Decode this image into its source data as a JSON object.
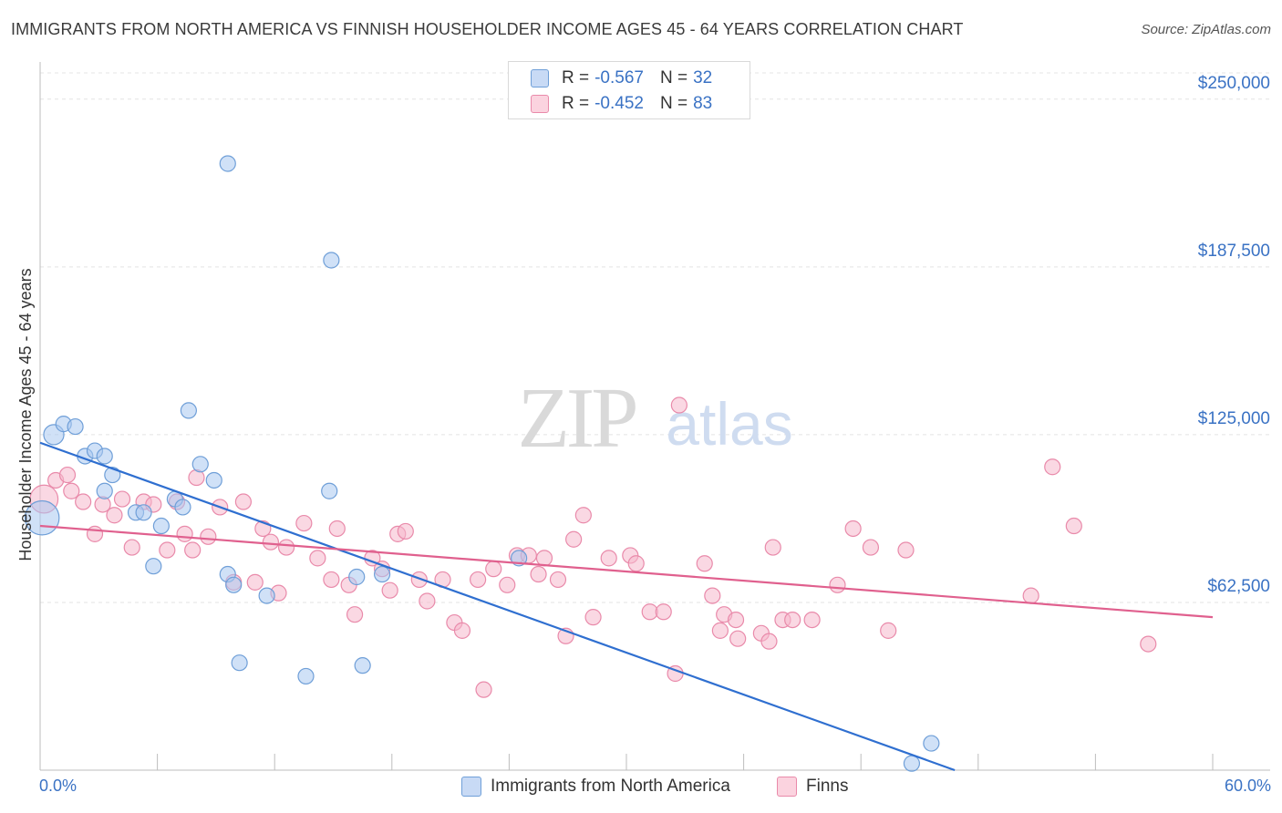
{
  "header": {
    "title": "IMMIGRANTS FROM NORTH AMERICA VS FINNISH HOUSEHOLDER INCOME AGES 45 - 64 YEARS CORRELATION CHART",
    "source": "Source: ZipAtlas.com"
  },
  "watermark": {
    "zip": "ZIP",
    "atlas": "atlas"
  },
  "legend": {
    "r_label": "R =",
    "n_label": "N =",
    "rows": [
      {
        "r": "-0.567",
        "n": "32",
        "color": "#aac8f0"
      },
      {
        "r": "-0.452",
        "n": "83",
        "color": "#f6b8cc"
      }
    ]
  },
  "colors": {
    "blue_fill": "#aac8f0",
    "blue_stroke": "#6f9fd8",
    "blue_line": "#2f6fd0",
    "pink_fill": "#f6b8cc",
    "pink_stroke": "#e98aaa",
    "pink_line": "#e0608e",
    "tick_label": "#3a72c4"
  },
  "chart_data": {
    "type": "scatter",
    "xlabel": "",
    "ylabel": "Householder Income Ages 45 - 64 years",
    "xlim": [
      0,
      60
    ],
    "ylim": [
      0,
      262500
    ],
    "x_tick_labels": [
      "0.0%",
      "60.0%"
    ],
    "y_ticks": [
      62500,
      125000,
      187500,
      250000
    ],
    "y_tick_labels": [
      "$62,500",
      "$125,000",
      "$187,500",
      "$250,000"
    ],
    "grid": true,
    "legend_position": "top-center",
    "series": [
      {
        "name": "Immigrants from North America",
        "trend": [
          [
            0,
            122000
          ],
          [
            46.8,
            0
          ]
        ],
        "points": [
          [
            0.1,
            94000,
            2.2
          ],
          [
            0.7,
            125000,
            1.3
          ],
          [
            1.2,
            129000,
            1.0
          ],
          [
            1.8,
            128000,
            1.0
          ],
          [
            2.3,
            117000,
            1.0
          ],
          [
            2.8,
            119000,
            1.0
          ],
          [
            3.3,
            117000,
            1.0
          ],
          [
            3.3,
            104000,
            1.0
          ],
          [
            3.7,
            110000,
            1.0
          ],
          [
            4.9,
            96000,
            1.0
          ],
          [
            5.3,
            96000,
            1.0
          ],
          [
            5.8,
            76000,
            1.0
          ],
          [
            6.2,
            91000,
            1.0
          ],
          [
            6.9,
            101000,
            1.0
          ],
          [
            7.3,
            98000,
            1.0
          ],
          [
            7.6,
            134000,
            1.0
          ],
          [
            8.2,
            114000,
            1.0
          ],
          [
            8.9,
            108000,
            1.0
          ],
          [
            9.6,
            226000,
            1.0
          ],
          [
            9.6,
            73000,
            1.0
          ],
          [
            9.9,
            69000,
            1.0
          ],
          [
            10.2,
            40000,
            1.0
          ],
          [
            11.6,
            65000,
            1.0
          ],
          [
            13.6,
            35000,
            1.0
          ],
          [
            14.8,
            104000,
            1.0
          ],
          [
            14.9,
            190000,
            1.0
          ],
          [
            16.2,
            72000,
            1.0
          ],
          [
            16.5,
            39000,
            1.0
          ],
          [
            17.5,
            73000,
            1.0
          ],
          [
            24.5,
            79000,
            1.0
          ],
          [
            44.6,
            2500,
            1.0
          ],
          [
            45.6,
            10000,
            1.0
          ]
        ]
      },
      {
        "name": "Finns",
        "trend": [
          [
            0,
            91000
          ],
          [
            60,
            57000
          ]
        ],
        "points": [
          [
            0.2,
            101000,
            1.8
          ],
          [
            0.8,
            108000,
            1.0
          ],
          [
            1.4,
            110000,
            1.0
          ],
          [
            1.6,
            104000,
            1.0
          ],
          [
            2.2,
            100000,
            1.0
          ],
          [
            2.8,
            88000,
            1.0
          ],
          [
            3.2,
            99000,
            1.0
          ],
          [
            3.8,
            95000,
            1.0
          ],
          [
            4.2,
            101000,
            1.0
          ],
          [
            4.7,
            83000,
            1.0
          ],
          [
            5.3,
            100000,
            1.0
          ],
          [
            5.8,
            99000,
            1.0
          ],
          [
            6.5,
            82000,
            1.0
          ],
          [
            7.0,
            100000,
            1.0
          ],
          [
            7.4,
            88000,
            1.0
          ],
          [
            7.8,
            82000,
            1.0
          ],
          [
            8.0,
            109000,
            1.0
          ],
          [
            8.6,
            87000,
            1.0
          ],
          [
            9.2,
            98000,
            1.0
          ],
          [
            9.9,
            70000,
            1.0
          ],
          [
            10.4,
            100000,
            1.0
          ],
          [
            11.0,
            70000,
            1.0
          ],
          [
            11.4,
            90000,
            1.0
          ],
          [
            11.8,
            85000,
            1.0
          ],
          [
            12.2,
            66000,
            1.0
          ],
          [
            12.6,
            83000,
            1.0
          ],
          [
            13.5,
            92000,
            1.0
          ],
          [
            14.2,
            79000,
            1.0
          ],
          [
            14.9,
            71000,
            1.0
          ],
          [
            15.2,
            90000,
            1.0
          ],
          [
            15.8,
            69000,
            1.0
          ],
          [
            16.1,
            58000,
            1.0
          ],
          [
            17.0,
            79000,
            1.0
          ],
          [
            17.5,
            75000,
            1.0
          ],
          [
            17.9,
            67000,
            1.0
          ],
          [
            18.3,
            88000,
            1.0
          ],
          [
            18.7,
            89000,
            1.0
          ],
          [
            19.4,
            71000,
            1.0
          ],
          [
            19.8,
            63000,
            1.0
          ],
          [
            20.6,
            71000,
            1.0
          ],
          [
            21.2,
            55000,
            1.0
          ],
          [
            21.6,
            52000,
            1.0
          ],
          [
            22.4,
            71000,
            1.0
          ],
          [
            22.7,
            30000,
            1.0
          ],
          [
            23.2,
            75000,
            1.0
          ],
          [
            23.9,
            69000,
            1.0
          ],
          [
            24.4,
            80000,
            1.0
          ],
          [
            25.0,
            80000,
            1.0
          ],
          [
            25.5,
            73000,
            1.0
          ],
          [
            25.8,
            79000,
            1.0
          ],
          [
            26.5,
            71000,
            1.0
          ],
          [
            26.9,
            50000,
            1.0
          ],
          [
            27.3,
            86000,
            1.0
          ],
          [
            27.8,
            95000,
            1.0
          ],
          [
            28.3,
            57000,
            1.0
          ],
          [
            29.1,
            79000,
            1.0
          ],
          [
            30.2,
            80000,
            1.0
          ],
          [
            30.5,
            77000,
            1.0
          ],
          [
            31.2,
            59000,
            1.0
          ],
          [
            31.9,
            59000,
            1.0
          ],
          [
            32.5,
            36000,
            1.0
          ],
          [
            32.7,
            136000,
            1.0
          ],
          [
            34.0,
            77000,
            1.0
          ],
          [
            34.4,
            65000,
            1.0
          ],
          [
            34.8,
            52000,
            1.0
          ],
          [
            35.0,
            58000,
            1.0
          ],
          [
            35.6,
            56000,
            1.0
          ],
          [
            35.7,
            49000,
            1.0
          ],
          [
            36.9,
            51000,
            1.0
          ],
          [
            37.3,
            48000,
            1.0
          ],
          [
            37.5,
            83000,
            1.0
          ],
          [
            38.0,
            56000,
            1.0
          ],
          [
            38.5,
            56000,
            1.0
          ],
          [
            39.5,
            56000,
            1.0
          ],
          [
            40.8,
            69000,
            1.0
          ],
          [
            41.6,
            90000,
            1.0
          ],
          [
            42.5,
            83000,
            1.0
          ],
          [
            43.4,
            52000,
            1.0
          ],
          [
            44.3,
            82000,
            1.0
          ],
          [
            50.7,
            65000,
            1.0
          ],
          [
            51.8,
            113000,
            1.0
          ],
          [
            52.9,
            91000,
            1.0
          ],
          [
            56.7,
            47000,
            1.0
          ]
        ]
      }
    ]
  }
}
